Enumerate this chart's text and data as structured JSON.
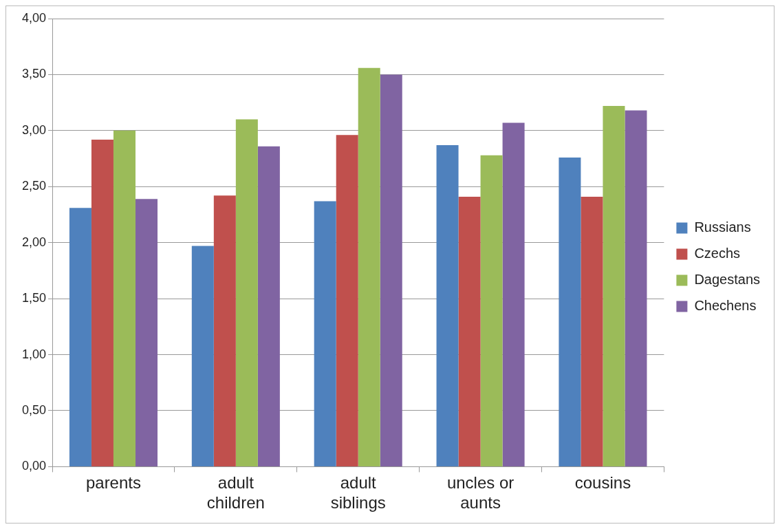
{
  "chart_data": {
    "type": "bar",
    "categories": [
      "parents",
      "adult children",
      "adult siblings",
      "uncles or aunts",
      "cousins"
    ],
    "series": [
      {
        "name": "Russians",
        "color": "#4f81bd",
        "values": [
          2.31,
          1.97,
          2.37,
          2.87,
          2.76
        ]
      },
      {
        "name": "Czechs",
        "color": "#c0504d",
        "values": [
          2.92,
          2.42,
          2.96,
          2.41,
          2.41
        ]
      },
      {
        "name": "Dagestans",
        "color": "#9bbb59",
        "values": [
          3.0,
          3.1,
          3.56,
          2.78,
          3.22
        ]
      },
      {
        "name": "Chechens",
        "color": "#8064a2",
        "values": [
          2.39,
          2.86,
          3.5,
          3.07,
          3.18
        ]
      }
    ],
    "ylim": [
      0,
      4
    ],
    "yticks": [
      {
        "value": 0,
        "label": "0,00"
      },
      {
        "value": 0.5,
        "label": "0,50"
      },
      {
        "value": 1,
        "label": "1,00"
      },
      {
        "value": 1.5,
        "label": "1,50"
      },
      {
        "value": 2,
        "label": "2,00"
      },
      {
        "value": 2.5,
        "label": "2,50"
      },
      {
        "value": 3,
        "label": "3,00"
      },
      {
        "value": 3.5,
        "label": "3,50"
      },
      {
        "value": 4,
        "label": "4,00"
      }
    ],
    "grid": "y",
    "legend": "right"
  }
}
